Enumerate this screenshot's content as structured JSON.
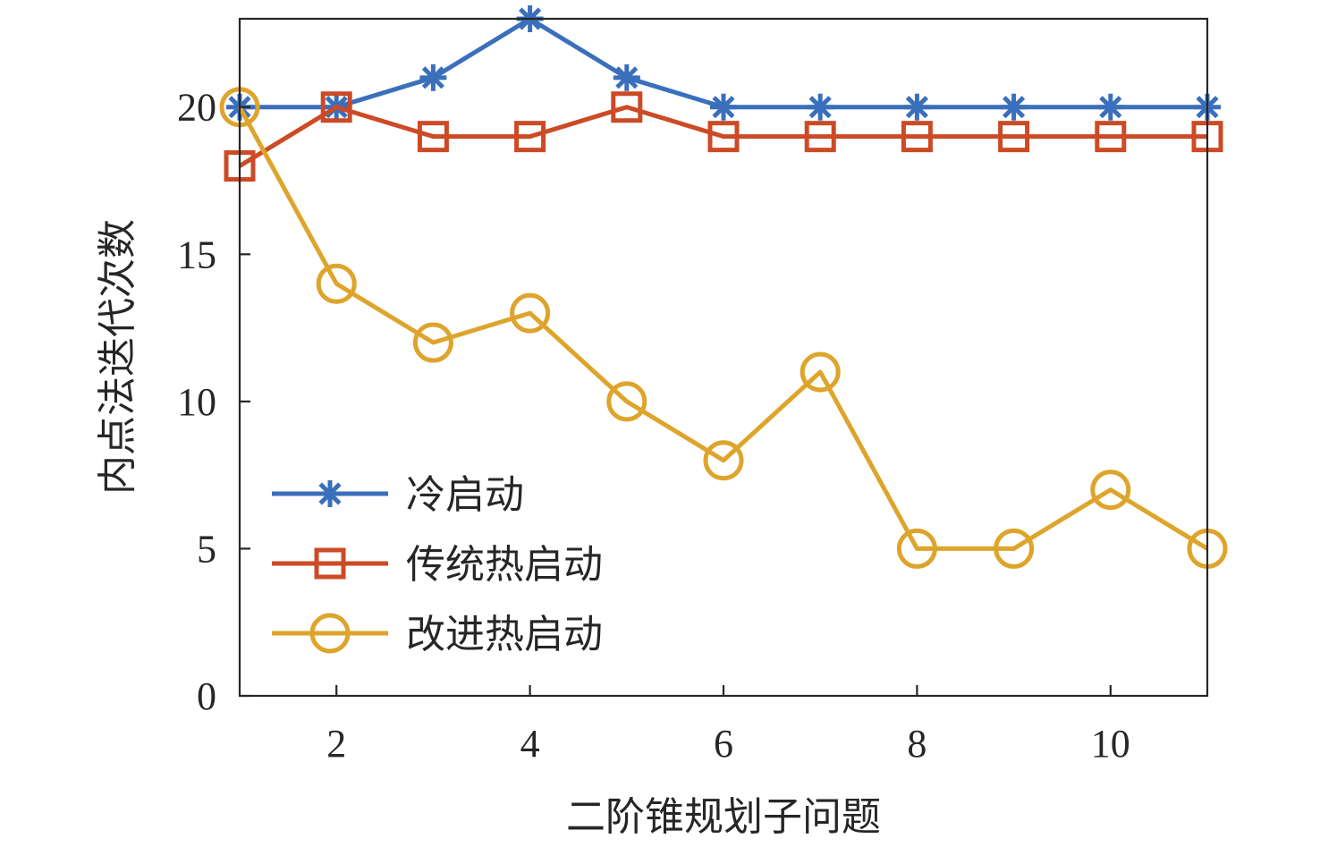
{
  "chart_data": {
    "type": "line",
    "xlabel": "二阶锥规划子问题",
    "ylabel": "内点法迭代次数",
    "x": [
      1,
      2,
      3,
      4,
      5,
      6,
      7,
      8,
      9,
      10,
      11
    ],
    "xlim": [
      1,
      11
    ],
    "ylim": [
      0,
      23
    ],
    "xticks": [
      2,
      4,
      6,
      8,
      10
    ],
    "yticks": [
      0,
      5,
      10,
      15,
      20
    ],
    "grid": false,
    "legend_position": "bottom-left",
    "series": [
      {
        "name": "冷启动",
        "color": "#3a6fbb",
        "marker": "asterisk",
        "values": [
          20,
          20,
          21,
          23,
          21,
          20,
          20,
          20,
          20,
          20,
          20
        ]
      },
      {
        "name": "传统热启动",
        "color": "#cc4a25",
        "marker": "square",
        "values": [
          18,
          20,
          19,
          19,
          20,
          19,
          19,
          19,
          19,
          19,
          19
        ]
      },
      {
        "name": "改进热启动",
        "color": "#dea42b",
        "marker": "circle",
        "values": [
          20,
          14,
          12,
          13,
          10,
          8,
          11,
          5,
          5,
          7,
          5
        ]
      }
    ]
  }
}
